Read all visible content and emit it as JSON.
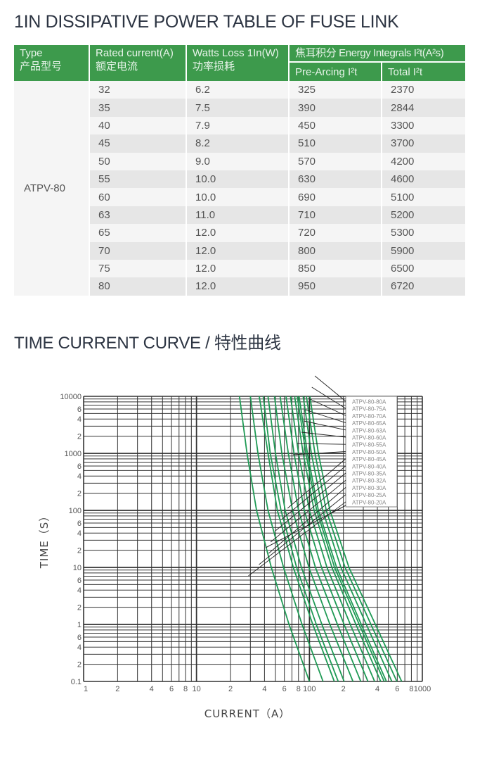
{
  "table_title": "1IN DISSIPATIVE POWER TABLE OF FUSE LINK",
  "table": {
    "headers": {
      "type_en": "Type",
      "type_cn": "产品型号",
      "rated_en": "Rated current(A)",
      "rated_cn": "额定电流",
      "watts_en": "Watts Loss 1In(W)",
      "watts_cn": "功率损耗",
      "energy": "焦耳积分 Energy Integrals I²t(A²s)",
      "pre": "Pre-Arcing I²t",
      "total": "Total I²t"
    },
    "type": "ATPV-80",
    "rows": [
      [
        "32",
        "6.2",
        "325",
        "2370"
      ],
      [
        "35",
        "7.5",
        "390",
        "2844"
      ],
      [
        "40",
        "7.9",
        "450",
        "3300"
      ],
      [
        "45",
        "8.2",
        "510",
        "3700"
      ],
      [
        "50",
        "9.0",
        "570",
        "4200"
      ],
      [
        "55",
        "10.0",
        "630",
        "4600"
      ],
      [
        "60",
        "10.0",
        "690",
        "5100"
      ],
      [
        "63",
        "11.0",
        "710",
        "5200"
      ],
      [
        "65",
        "12.0",
        "720",
        "5300"
      ],
      [
        "70",
        "12.0",
        "800",
        "5900"
      ],
      [
        "75",
        "12.0",
        "850",
        "6500"
      ],
      [
        "80",
        "12.0",
        "950",
        "6720"
      ]
    ]
  },
  "chart_title": "TIME CURRENT CURVE / 特性曲线",
  "chart_data": {
    "type": "line",
    "xscale": "log",
    "yscale": "log",
    "xlim": [
      1,
      1000
    ],
    "ylim": [
      0.1,
      10000
    ],
    "xlabel": "CURRENT（A）",
    "ylabel": "TIME（S）",
    "xticks": [
      {
        "v": 1,
        "l": "1"
      },
      {
        "v": 2,
        "l": "2"
      },
      {
        "v": 4,
        "l": "4"
      },
      {
        "v": 6,
        "l": "6"
      },
      {
        "v": 8,
        "l": "8"
      },
      {
        "v": 10,
        "l": "10"
      },
      {
        "v": 20,
        "l": "2"
      },
      {
        "v": 40,
        "l": "4"
      },
      {
        "v": 60,
        "l": "6"
      },
      {
        "v": 80,
        "l": "8"
      },
      {
        "v": 100,
        "l": "100"
      },
      {
        "v": 200,
        "l": "2"
      },
      {
        "v": 400,
        "l": "4"
      },
      {
        "v": 600,
        "l": "6"
      },
      {
        "v": 800,
        "l": "8"
      },
      {
        "v": 1000,
        "l": "1000"
      }
    ],
    "yticks": [
      {
        "v": 0.1,
        "l": "0.1"
      },
      {
        "v": 0.2,
        "l": "2"
      },
      {
        "v": 0.4,
        "l": "4"
      },
      {
        "v": 0.6,
        "l": "6"
      },
      {
        "v": 1,
        "l": "1"
      },
      {
        "v": 2,
        "l": "2"
      },
      {
        "v": 4,
        "l": "4"
      },
      {
        "v": 6,
        "l": "6"
      },
      {
        "v": 10,
        "l": "10"
      },
      {
        "v": 20,
        "l": "2"
      },
      {
        "v": 40,
        "l": "4"
      },
      {
        "v": 60,
        "l": "6"
      },
      {
        "v": 100,
        "l": "100"
      },
      {
        "v": 200,
        "l": "2"
      },
      {
        "v": 400,
        "l": "4"
      },
      {
        "v": 600,
        "l": "6"
      },
      {
        "v": 1000,
        "l": "1000"
      },
      {
        "v": 2000,
        "l": "2"
      },
      {
        "v": 4000,
        "l": "4"
      },
      {
        "v": 6000,
        "l": "6"
      },
      {
        "v": 10000,
        "l": "10000"
      }
    ],
    "grid": true,
    "legend_position": "top-right",
    "curve_color": "#1f9a55",
    "times": [
      10000,
      1000,
      100,
      10,
      1,
      0.1
    ],
    "series": [
      {
        "name": "ATPV-80-80A",
        "currents": [
          101,
          120,
          152,
          224,
          384,
          656
        ]
      },
      {
        "name": "ATPV-80-75A",
        "currents": [
          94,
          112,
          141,
          207,
          351,
          595
        ]
      },
      {
        "name": "ATPV-80-70A",
        "currents": [
          88,
          104,
          131,
          190,
          319,
          537
        ]
      },
      {
        "name": "ATPV-80-65A",
        "currents": [
          81,
          96,
          120,
          174,
          288,
          481
        ]
      },
      {
        "name": "ATPV-80-63A",
        "currents": [
          78,
          93,
          116,
          167,
          276,
          459
        ]
      },
      {
        "name": "ATPV-80-60A",
        "currents": [
          74,
          88,
          110,
          158,
          258,
          428
        ]
      },
      {
        "name": "ATPV-80-55A",
        "currents": [
          68,
          80,
          100,
          143,
          230,
          378
        ]
      },
      {
        "name": "ATPV-80-50A",
        "currents": [
          62,
          73,
          90,
          128,
          203,
          330
        ]
      },
      {
        "name": "ATPV-80-45A",
        "currents": [
          55,
          65,
          80,
          113,
          177,
          285
        ]
      },
      {
        "name": "ATPV-80-40A",
        "currents": [
          49,
          57,
          71,
          99,
          152,
          243
        ]
      },
      {
        "name": "ATPV-80-35A",
        "currents": [
          43,
          50,
          61,
          85,
          129,
          203
        ]
      },
      {
        "name": "ATPV-80-32A",
        "currents": [
          39,
          45,
          56,
          77,
          115,
          180
        ]
      },
      {
        "name": "ATPV-80-30A",
        "currents": [
          36,
          43,
          52,
          72,
          107,
          166
        ]
      },
      {
        "name": "ATPV-80-25A",
        "currents": [
          30,
          35,
          43,
          59,
          86,
          132
        ]
      },
      {
        "name": "ATPV-80-20A",
        "currents": [
          24,
          28,
          34,
          46,
          66,
          100
        ]
      }
    ]
  }
}
